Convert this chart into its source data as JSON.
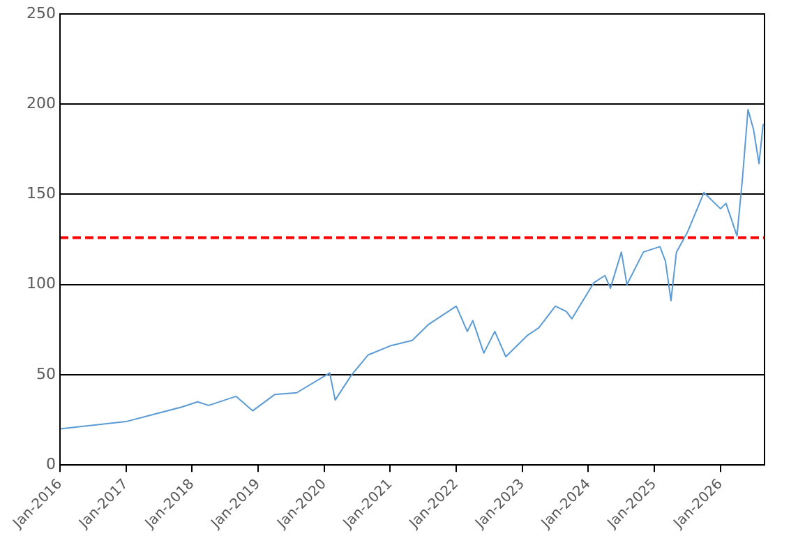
{
  "chart_data": {
    "type": "line",
    "x": [
      "2016-01",
      "2016-07",
      "2017-01",
      "2017-06",
      "2017-11",
      "2018-02",
      "2018-04",
      "2018-09",
      "2018-12",
      "2019-04",
      "2019-08",
      "2020-02",
      "2020-03",
      "2020-06",
      "2020-09",
      "2021-01",
      "2021-05",
      "2021-08",
      "2022-01",
      "2022-03",
      "2022-04",
      "2022-06",
      "2022-08",
      "2022-10",
      "2022-12",
      "2023-02",
      "2023-04",
      "2023-07",
      "2023-09",
      "2023-10",
      "2024-02",
      "2024-04",
      "2024-05",
      "2024-07",
      "2024-08",
      "2024-11",
      "2025-02",
      "2025-03",
      "2025-04",
      "2025-05",
      "2025-07",
      "2025-10",
      "2026-01",
      "2026-02",
      "2026-04",
      "2026-05",
      "2026-06",
      "2026-07",
      "2026-08",
      "2026-08-24"
    ],
    "series": [
      {
        "color": "#5b9bd5",
        "values": [
          20,
          22,
          24,
          28,
          32,
          35,
          33,
          38,
          30,
          39,
          40,
          51,
          36,
          50,
          61,
          66,
          69,
          78,
          88,
          74,
          80,
          62,
          74,
          60,
          66,
          72,
          76,
          88,
          85,
          81,
          101,
          105,
          98,
          118,
          100,
          118,
          121,
          113,
          91,
          118,
          129,
          151,
          142,
          145,
          127,
          159,
          197,
          186,
          167,
          189
        ]
      }
    ],
    "xlim": [
      "2016-01",
      "2026-09"
    ],
    "xticks": [
      {
        "value": "2016-01",
        "label": "Jan-2016"
      },
      {
        "value": "2017-01",
        "label": "Jan-2017"
      },
      {
        "value": "2018-01",
        "label": "Jan-2018"
      },
      {
        "value": "2019-01",
        "label": "Jan-2019"
      },
      {
        "value": "2020-01",
        "label": "Jan-2020"
      },
      {
        "value": "2021-01",
        "label": "Jan-2021"
      },
      {
        "value": "2022-01",
        "label": "Jan-2022"
      },
      {
        "value": "2023-01",
        "label": "Jan-2023"
      },
      {
        "value": "2024-01",
        "label": "Jan-2024"
      },
      {
        "value": "2025-01",
        "label": "Jan-2025"
      },
      {
        "value": "2026-01",
        "label": "Jan-2026"
      }
    ],
    "ylim": [
      0,
      250
    ],
    "yticks": [
      0,
      50,
      100,
      150,
      200,
      250
    ],
    "ref_lines": [
      {
        "axis": "y",
        "value": 126,
        "color": "#ff0000",
        "line_style": "dashed"
      }
    ],
    "grid": "y",
    "legend": false,
    "marker": "none",
    "line_style": "solid"
  }
}
